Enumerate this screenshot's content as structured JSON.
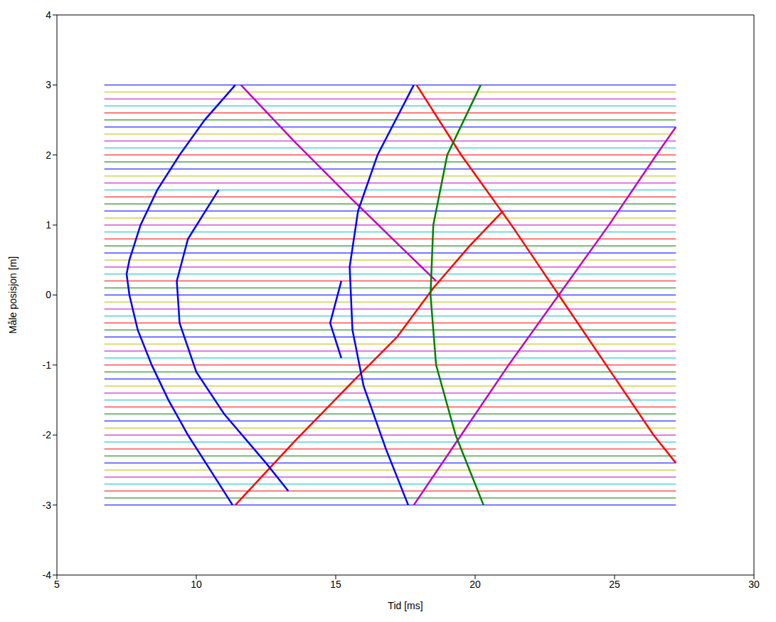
{
  "chart_data": {
    "type": "line",
    "xlabel": "Tid [ms]",
    "ylabel": "Måle posisjon [m]",
    "xlim": [
      5,
      30
    ],
    "xticks": [
      5,
      10,
      15,
      20,
      25,
      30
    ],
    "ylim": [
      -4,
      4
    ],
    "yticks": [
      -4,
      -3,
      -2,
      -1,
      0,
      1,
      2,
      3,
      4
    ],
    "grid": false,
    "traces": {
      "time_range": [
        6.7,
        27.2
      ],
      "positions": [
        -3,
        -2.9,
        -2.8,
        -2.7,
        -2.6,
        -2.5,
        -2.4,
        -2.3,
        -2.2,
        -2.1,
        -2,
        -1.9,
        -1.8,
        -1.7,
        -1.6,
        -1.5,
        -1.4,
        -1.3,
        -1.2,
        -1.1,
        -1,
        -0.9,
        -0.8,
        -0.7,
        -0.6,
        -0.5,
        -0.4,
        -0.3,
        -0.2,
        -0.1,
        0,
        0.1,
        0.2,
        0.3,
        0.4,
        0.5,
        0.6,
        0.7,
        0.8,
        0.9,
        1,
        1.1,
        1.2,
        1.3,
        1.4,
        1.5,
        1.6,
        1.7,
        1.8,
        1.9,
        2,
        2.1,
        2.2,
        2.3,
        2.4,
        2.5,
        2.6,
        2.7,
        2.8,
        2.9,
        3
      ],
      "colors": [
        "#0000ff",
        "#008000",
        "#ff0000",
        "#00bfbf",
        "#bf00bf",
        "#bfbf00",
        "#0000ff",
        "#008000",
        "#ff0000",
        "#00bfbf",
        "#bf00bf",
        "#bfbf00",
        "#0000ff",
        "#008000",
        "#ff0000",
        "#00bfbf",
        "#bf00bf",
        "#bfbf00",
        "#0000ff",
        "#008000",
        "#ff0000",
        "#00bfbf",
        "#bf00bf",
        "#bfbf00",
        "#0000ff",
        "#008000",
        "#ff0000",
        "#00bfbf",
        "#bf00bf",
        "#bfbf00",
        "#0000ff",
        "#008000",
        "#ff0000",
        "#00bfbf",
        "#bf00bf",
        "#bfbf00",
        "#0000ff",
        "#008000",
        "#ff0000",
        "#00bfbf",
        "#bf00bf",
        "#bfbf00",
        "#0000ff",
        "#008000",
        "#ff0000",
        "#00bfbf",
        "#bf00bf",
        "#bfbf00",
        "#0000ff",
        "#008000",
        "#ff0000",
        "#00bfbf",
        "#bf00bf",
        "#bfbf00",
        "#0000ff",
        "#008000",
        "#ff0000",
        "#00bfbf",
        "#bf00bf",
        "#bfbf00",
        "#0000ff"
      ]
    },
    "series": [
      {
        "color": "#0000ff",
        "x": [
          11.4,
          10.3,
          9.4,
          8.6,
          8.0,
          7.6,
          7.5,
          7.6,
          7.9,
          8.4,
          9.0,
          9.7,
          10.5,
          11.3
        ],
        "y": [
          3.0,
          2.5,
          2.0,
          1.5,
          1.0,
          0.5,
          0.3,
          0.0,
          -0.5,
          -1.0,
          -1.5,
          -2.0,
          -2.5,
          -3.0
        ]
      },
      {
        "color": "#bf00bf",
        "x": [
          11.6,
          13.5,
          15.5,
          17.3,
          18.6
        ],
        "y": [
          3.0,
          2.2,
          1.4,
          0.7,
          0.2
        ]
      },
      {
        "color": "#ff0000",
        "x": [
          11.4,
          13.5,
          15.7,
          17.2,
          18.5,
          19.8,
          21.0
        ],
        "y": [
          -3.0,
          -2.1,
          -1.2,
          -0.6,
          0.1,
          0.7,
          1.2
        ]
      },
      {
        "color": "#0000ff",
        "x": [
          10.8,
          9.7,
          9.3,
          9.4,
          10.0,
          11.0,
          12.5,
          13.3
        ],
        "y": [
          1.5,
          0.8,
          0.2,
          -0.4,
          -1.1,
          -1.7,
          -2.4,
          -2.8
        ]
      },
      {
        "color": "#0000ff",
        "x": [
          17.8,
          16.5,
          15.8,
          15.5,
          15.6,
          16.0,
          16.8,
          17.6
        ],
        "y": [
          3.0,
          2.0,
          1.2,
          0.4,
          -0.5,
          -1.3,
          -2.2,
          -3.0
        ]
      },
      {
        "color": "#bf00bf",
        "x": [
          17.8,
          19.5,
          21.2,
          23.0,
          24.8,
          26.5,
          27.2
        ],
        "y": [
          -3.0,
          -2.0,
          -1.0,
          0.0,
          1.0,
          2.0,
          2.4
        ]
      },
      {
        "color": "#ff0000",
        "x": [
          17.9,
          19.5,
          21.3,
          23.0,
          24.7,
          26.4,
          27.2
        ],
        "y": [
          3.0,
          2.0,
          1.0,
          0.0,
          -1.0,
          -2.0,
          -2.4
        ]
      },
      {
        "color": "#0000ff",
        "x": [
          15.2,
          14.8,
          15.2
        ],
        "y": [
          0.2,
          -0.4,
          -0.9
        ]
      },
      {
        "color": "#008000",
        "x": [
          20.2,
          19.0,
          18.5,
          18.4,
          18.6,
          19.3,
          20.3
        ],
        "y": [
          3.0,
          2.0,
          1.0,
          0.0,
          -1.0,
          -2.0,
          -3.0
        ]
      }
    ]
  }
}
